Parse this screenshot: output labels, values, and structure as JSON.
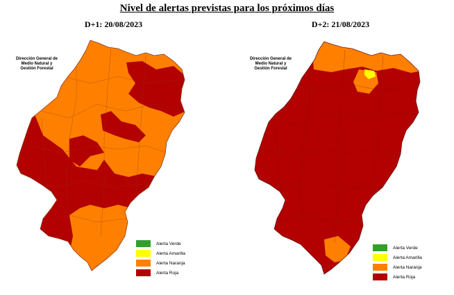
{
  "title": "Nivel de alertas previstas para los próximos días",
  "org_label": [
    "Dirección General de",
    "Medio Natural y",
    "Gestión Forestal"
  ],
  "colors": {
    "verde": "#33a02c",
    "amarilla": "#ffff00",
    "naranja": "#ff8000",
    "roja": "#b30000",
    "border": "#8a3a1a"
  },
  "legend": [
    {
      "label": "Alerta Verde",
      "color": "#33a02c"
    },
    {
      "label": "Alerta Amarilla",
      "color": "#ffff00"
    },
    {
      "label": "Alerta Naranja",
      "color": "#ff8000"
    },
    {
      "label": "Alerta Roja",
      "color": "#b30000"
    }
  ],
  "maps": [
    {
      "date": "D+1: 20/08/2023"
    },
    {
      "date": "D+2: 21/08/2023"
    }
  ]
}
